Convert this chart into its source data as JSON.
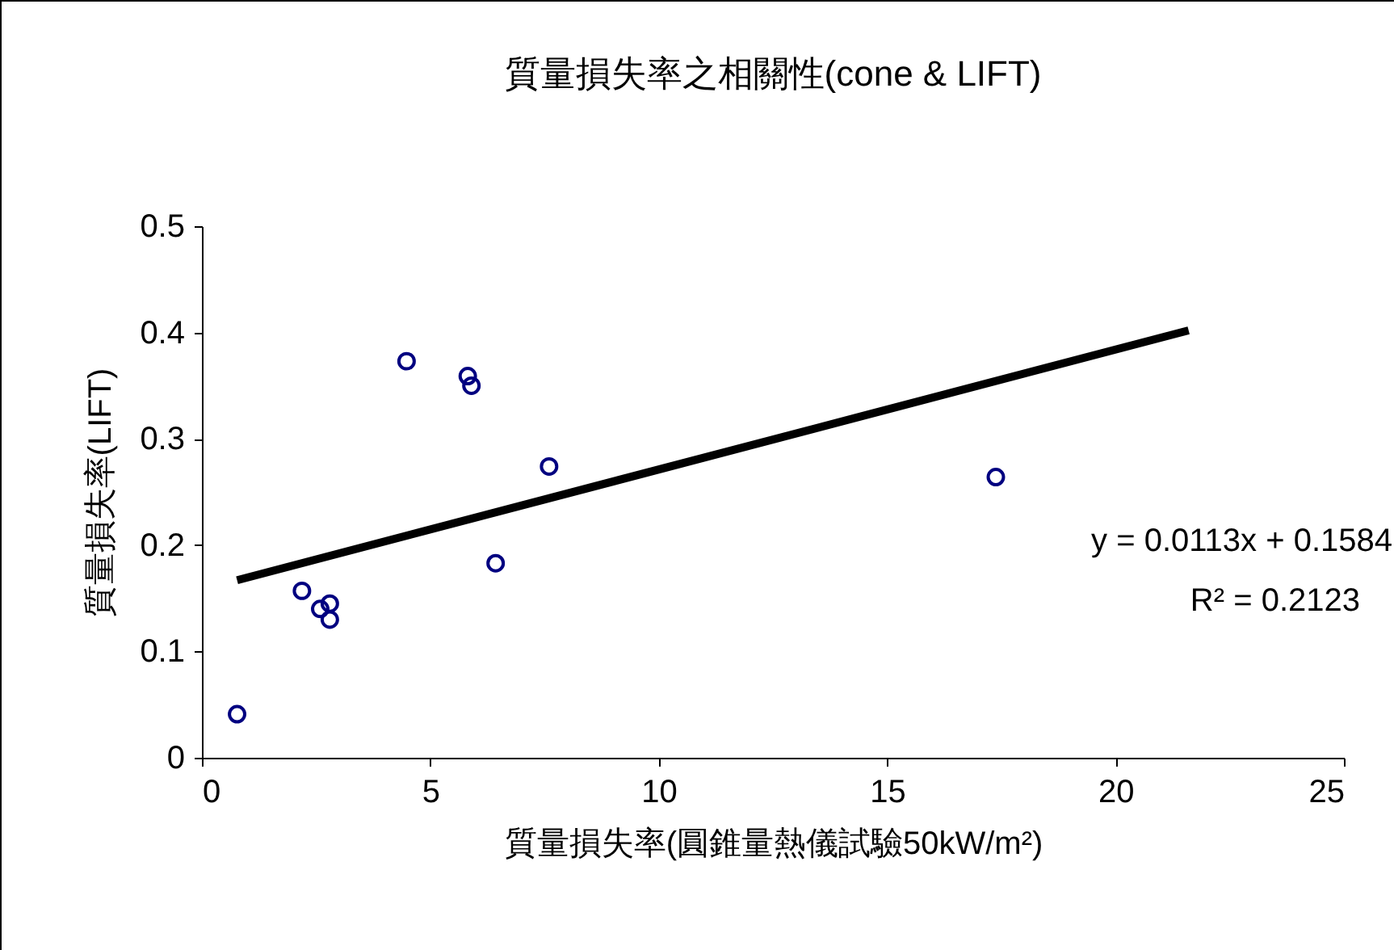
{
  "chart_data": {
    "type": "scatter",
    "title": "質量損失率之相關性(cone & LIFT)",
    "xlabel": "質量損失率(圓錐量熱儀試驗50kW/m²)",
    "ylabel": "質量損失率(LIFT)",
    "xlim": [
      0,
      25
    ],
    "xticks": [
      0,
      5,
      10,
      15,
      20,
      25
    ],
    "ylim": [
      0,
      0.5
    ],
    "yticks": [
      0,
      0.1,
      0.2,
      0.3,
      0.4,
      0.5
    ],
    "series": [
      {
        "marker": "circle",
        "color": "#000080",
        "x": [
          0.77,
          2.19,
          2.59,
          2.8,
          2.8,
          4.48,
          5.82,
          5.9,
          6.43,
          7.6,
          17.38
        ],
        "values": [
          0.041,
          0.157,
          0.14,
          0.145,
          0.13,
          0.373,
          0.359,
          0.35,
          0.183,
          0.274,
          0.264
        ]
      },
      {
        "type": "line",
        "marker": "none",
        "color": "#000000",
        "x": [
          0.77,
          21.6
        ],
        "values": [
          0.167,
          0.402
        ]
      }
    ],
    "annotations": [
      "y = 0.0113x + 0.1584",
      "R² = 0.2123"
    ]
  }
}
